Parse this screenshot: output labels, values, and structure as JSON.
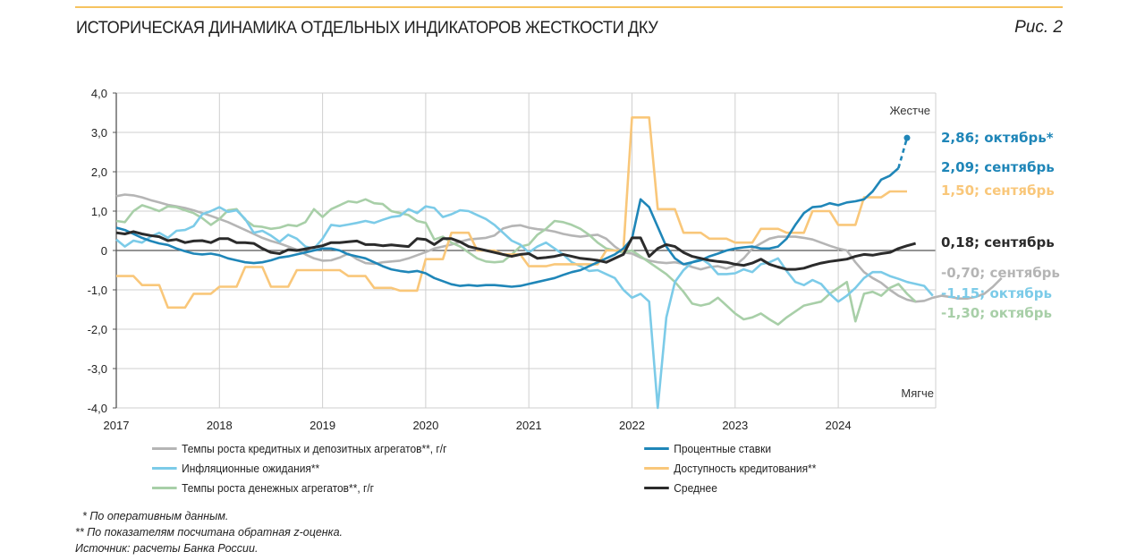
{
  "header": {
    "title": "ИСТОРИЧЕСКАЯ ДИНАМИКА ОТДЕЛЬНЫХ ИНДИКАТОРОВ ЖЕСТКОСТИ ДКУ",
    "figure_label": "Рис. 2",
    "accent_color": "#f6c35f"
  },
  "chart_data": {
    "type": "line",
    "title": "ИСТОРИЧЕСКАЯ ДИНАМИКА ОТДЕЛЬНЫХ ИНДИКАТОРОВ ЖЕСТКОСТИ ДКУ",
    "xlabel": "",
    "ylabel": "",
    "x_start": "2017-01",
    "x_frequency": "monthly",
    "x_ticks": [
      "2017",
      "2018",
      "2019",
      "2020",
      "2021",
      "2022",
      "2023",
      "2024"
    ],
    "x_range_years": [
      2017.0,
      2024.95
    ],
    "ylim": [
      -4.0,
      4.0
    ],
    "y_ticks": [
      "4,0",
      "3,0",
      "2,0",
      "1,0",
      "0",
      "-1,0",
      "-2,0",
      "-3,0",
      "-4,0"
    ],
    "y_tick_values": [
      4,
      3,
      2,
      1,
      0,
      -1,
      -2,
      -3,
      -4
    ],
    "grid": true,
    "annotations": {
      "top": "Жестче",
      "bottom": "Мягче"
    },
    "legend_position": "bottom",
    "series": [
      {
        "name": "Темпы роста кредитных и депозитных агрегатов**, г/г",
        "color": "#b5b5b5",
        "values": [
          1.38,
          1.42,
          1.4,
          1.35,
          1.28,
          1.22,
          1.16,
          1.12,
          1.08,
          1.02,
          0.95,
          0.88,
          0.8,
          0.72,
          0.62,
          0.52,
          0.42,
          0.32,
          0.24,
          0.18,
          0.1,
          0.02,
          -0.1,
          -0.2,
          -0.26,
          -0.25,
          -0.18,
          -0.08,
          -0.22,
          -0.32,
          -0.34,
          -0.3,
          -0.28,
          -0.26,
          -0.2,
          -0.12,
          -0.04,
          0.05,
          0.1,
          0.15,
          0.22,
          0.28,
          0.3,
          0.32,
          0.38,
          0.56,
          0.62,
          0.64,
          0.58,
          0.54,
          0.52,
          0.48,
          0.42,
          0.38,
          0.35,
          0.38,
          0.4,
          0.3,
          0.1,
          -0.05,
          -0.08,
          -0.18,
          -0.26,
          -0.3,
          -0.32,
          -0.3,
          -0.34,
          -0.42,
          -0.48,
          -0.42,
          -0.4,
          -0.46,
          -0.38,
          -0.2,
          0.05,
          0.18,
          0.3,
          0.35,
          0.35,
          0.35,
          0.32,
          0.28,
          0.2,
          0.12,
          0.05,
          0.0,
          -0.3,
          -0.55,
          -0.7,
          -0.82,
          -1.0,
          -1.15,
          -1.25,
          -1.3,
          -1.28,
          -1.2,
          -1.15,
          -1.18,
          -1.22,
          -1.22,
          -1.18,
          -1.1,
          -0.92,
          -0.7
        ],
        "last_label": "-0,70; сентябрь",
        "last_value": -0.7
      },
      {
        "name": "Инфляционные ожидания**",
        "color": "#7ccbe8",
        "values": [
          0.28,
          0.1,
          0.25,
          0.2,
          0.35,
          0.45,
          0.32,
          0.5,
          0.52,
          0.62,
          0.92,
          1.0,
          1.1,
          0.98,
          1.02,
          0.8,
          0.45,
          0.5,
          0.38,
          0.22,
          0.4,
          0.3,
          0.1,
          0.05,
          0.3,
          0.65,
          0.62,
          0.66,
          0.7,
          0.75,
          0.7,
          0.78,
          0.85,
          0.88,
          1.05,
          0.95,
          1.12,
          1.08,
          0.85,
          0.92,
          1.02,
          1.0,
          0.9,
          0.8,
          0.65,
          0.45,
          0.25,
          0.15,
          -0.05,
          0.1,
          0.2,
          0.05,
          -0.1,
          -0.3,
          -0.4,
          -0.52,
          -0.5,
          -0.6,
          -0.7,
          -1.0,
          -1.2,
          -1.1,
          -1.3,
          -4.0,
          -1.7,
          -0.8,
          -0.5,
          -0.3,
          -0.2,
          -0.35,
          -0.6,
          -0.6,
          -0.58,
          -0.48,
          -0.55,
          -0.35,
          -0.3,
          -0.2,
          -0.52,
          -0.8,
          -0.88,
          -0.75,
          -0.85,
          -1.1,
          -1.3,
          -1.15,
          -0.95,
          -0.7,
          -0.55,
          -0.55,
          -0.65,
          -0.72,
          -0.8,
          -0.85,
          -0.9,
          -1.15
        ],
        "last_label": "-1,15; октябрь",
        "last_value": -1.15
      },
      {
        "name": "Темпы роста денежных агрегатов**, г/г",
        "color": "#a8cfa8",
        "values": [
          0.75,
          0.72,
          1.0,
          1.15,
          1.08,
          1.0,
          1.12,
          1.1,
          1.02,
          0.95,
          0.82,
          0.65,
          0.8,
          1.02,
          1.05,
          0.78,
          0.62,
          0.6,
          0.55,
          0.58,
          0.65,
          0.62,
          0.72,
          1.05,
          0.85,
          1.05,
          1.15,
          1.25,
          1.22,
          1.3,
          1.2,
          1.18,
          1.0,
          0.95,
          0.9,
          0.75,
          0.7,
          0.28,
          0.35,
          0.2,
          0.1,
          -0.05,
          -0.2,
          -0.28,
          -0.3,
          -0.28,
          -0.1,
          0.1,
          0.15,
          0.4,
          0.55,
          0.75,
          0.72,
          0.65,
          0.55,
          0.4,
          0.2,
          0.05,
          0.0,
          -0.05,
          0.0,
          -0.15,
          -0.3,
          -0.45,
          -0.6,
          -0.8,
          -1.05,
          -1.35,
          -1.4,
          -1.35,
          -1.2,
          -1.4,
          -1.6,
          -1.75,
          -1.7,
          -1.6,
          -1.75,
          -1.88,
          -1.7,
          -1.55,
          -1.4,
          -1.35,
          -1.3,
          -1.1,
          -0.95,
          -0.8,
          -1.8,
          -1.1,
          -1.05,
          -1.15,
          -0.95,
          -0.85,
          -1.1,
          -1.3
        ],
        "last_label": "-1,30; октябрь",
        "last_value": -1.3
      },
      {
        "name": "Процентные ставки",
        "color": "#1f86b8",
        "values": [
          0.58,
          0.52,
          0.42,
          0.32,
          0.24,
          0.18,
          0.14,
          0.05,
          -0.02,
          -0.08,
          -0.1,
          -0.08,
          -0.12,
          -0.2,
          -0.25,
          -0.3,
          -0.32,
          -0.3,
          -0.25,
          -0.18,
          -0.15,
          -0.1,
          -0.05,
          0.0,
          0.05,
          0.05,
          0.0,
          -0.1,
          -0.15,
          -0.2,
          -0.3,
          -0.4,
          -0.48,
          -0.52,
          -0.55,
          -0.52,
          -0.58,
          -0.7,
          -0.78,
          -0.86,
          -0.9,
          -0.88,
          -0.9,
          -0.88,
          -0.88,
          -0.9,
          -0.92,
          -0.9,
          -0.85,
          -0.8,
          -0.75,
          -0.7,
          -0.62,
          -0.55,
          -0.5,
          -0.4,
          -0.3,
          -0.2,
          -0.1,
          0.05,
          0.3,
          1.3,
          1.1,
          0.6,
          0.1,
          -0.2,
          -0.35,
          -0.3,
          -0.25,
          -0.15,
          -0.08,
          0.0,
          0.05,
          0.08,
          0.1,
          0.05,
          0.05,
          0.1,
          0.3,
          0.65,
          0.95,
          1.1,
          1.12,
          1.2,
          1.15,
          1.22,
          1.25,
          1.3,
          1.5,
          1.8,
          1.9,
          2.09
        ],
        "forecast": {
          "value": 2.86,
          "label": "октябрь*"
        },
        "last_label": "2,09; сентябрь",
        "forecast_label": "2,86; октябрь*",
        "last_value": 2.09
      },
      {
        "name": "Доступность кредитования**",
        "color": "#f9c77a",
        "values": [
          -0.65,
          -0.65,
          -0.65,
          -0.88,
          -0.88,
          -0.88,
          -1.45,
          -1.45,
          -1.45,
          -1.1,
          -1.1,
          -1.1,
          -0.92,
          -0.92,
          -0.92,
          -0.42,
          -0.42,
          -0.42,
          -0.92,
          -0.92,
          -0.92,
          -0.5,
          -0.5,
          -0.5,
          -0.5,
          -0.5,
          -0.5,
          -0.65,
          -0.65,
          -0.65,
          -0.95,
          -0.95,
          -0.95,
          -1.02,
          -1.02,
          -1.02,
          -0.22,
          -0.22,
          -0.22,
          0.45,
          0.45,
          0.45,
          0.0,
          0.0,
          0.0,
          -0.1,
          -0.1,
          -0.1,
          -0.4,
          -0.4,
          -0.4,
          -0.35,
          -0.35,
          -0.35,
          -0.35,
          -0.35,
          -0.35,
          0.0,
          0.0,
          0.0,
          3.38,
          3.38,
          3.38,
          1.05,
          1.05,
          1.05,
          0.45,
          0.45,
          0.45,
          0.3,
          0.3,
          0.3,
          0.2,
          0.2,
          0.2,
          0.55,
          0.55,
          0.55,
          0.45,
          0.45,
          0.45,
          1.0,
          1.0,
          1.0,
          0.65,
          0.65,
          0.65,
          1.35,
          1.35,
          1.35,
          1.5,
          1.5,
          1.5
        ],
        "last_label": "1,50; сентябрь",
        "last_value": 1.5
      },
      {
        "name": "Среднее",
        "color": "#2b2b2b",
        "values": [
          0.45,
          0.42,
          0.48,
          0.42,
          0.38,
          0.35,
          0.25,
          0.28,
          0.2,
          0.24,
          0.25,
          0.2,
          0.3,
          0.3,
          0.2,
          0.2,
          0.18,
          0.05,
          -0.05,
          -0.08,
          0.02,
          0.0,
          0.04,
          0.08,
          0.12,
          0.2,
          0.2,
          0.22,
          0.24,
          0.15,
          0.15,
          0.12,
          0.14,
          0.12,
          0.1,
          0.3,
          0.28,
          0.15,
          0.3,
          0.3,
          0.22,
          0.1,
          0.05,
          0.0,
          -0.05,
          -0.1,
          -0.15,
          -0.1,
          -0.08,
          -0.2,
          -0.18,
          -0.15,
          -0.1,
          -0.15,
          -0.2,
          -0.22,
          -0.25,
          -0.3,
          -0.2,
          -0.1,
          0.32,
          0.32,
          -0.15,
          0.05,
          0.15,
          0.1,
          -0.05,
          -0.15,
          -0.2,
          -0.25,
          -0.28,
          -0.3,
          -0.35,
          -0.38,
          -0.32,
          -0.22,
          -0.35,
          -0.42,
          -0.48,
          -0.48,
          -0.45,
          -0.38,
          -0.32,
          -0.28,
          -0.25,
          -0.22,
          -0.15,
          -0.1,
          -0.12,
          -0.08,
          -0.05,
          0.05,
          0.12,
          0.18
        ],
        "last_label": "0,18; сентябрь",
        "last_value": 0.18
      }
    ]
  },
  "legend": {
    "items": [
      {
        "label": "Темпы роста кредитных и депозитных агрегатов**, г/г",
        "color": "#b5b5b5"
      },
      {
        "label": "Инфляционные ожидания**",
        "color": "#7ccbe8"
      },
      {
        "label": "Темпы роста денежных агрегатов**, г/г",
        "color": "#a8cfa8"
      },
      {
        "label": "Процентные ставки",
        "color": "#1f86b8"
      },
      {
        "label": "Доступность кредитования**",
        "color": "#f9c77a"
      },
      {
        "label": "Среднее",
        "color": "#2b2b2b"
      }
    ]
  },
  "notes": {
    "note1": "* По оперативным данным.",
    "note2": "** По показателям посчитана обратная z-оценка.",
    "source": "Источник: расчеты Банка России."
  }
}
